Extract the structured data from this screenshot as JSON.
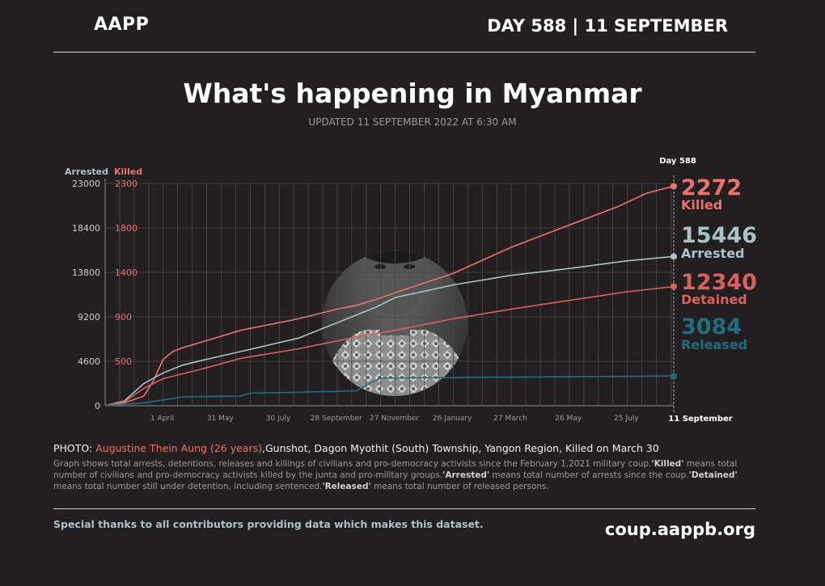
{
  "header": {
    "logo": "AAPP",
    "day_info": "DAY 588 | 11 SEPTEMBER"
  },
  "title": "What's happening in Myanmar",
  "updated": "UPDATED 11 SEPTEMBER 2022 AT 6:30 AM",
  "photo_caption": {
    "prefix": "PHOTO: ",
    "name": "Augustine Thein Aung (26 years)",
    "details": ",Gunshot, Dagon Myothit (South) Township, Yangon Region, Killed on March 30"
  },
  "description": {
    "p1": "Graph shows total arrests, detentions, releases and killings of civilians and pro-democracy activists since the February 1,2021 military coup.",
    "killed_term": "'Killed'",
    "p2": " means total number of civilians and pro-democracy activists killed by the junta and pro-military groups.",
    "arrested_term": "'Arrested'",
    "p3": " means total number of arrests since the coup.",
    "detained_term": "'Detained'",
    "p4": " means total number still under detention, including sentenced.",
    "released_term": "'Released'",
    "p5": " means total number of released persons."
  },
  "footer": {
    "thanks": "Special thanks to all contributors providing data which makes this dataset.",
    "site": "coup.aappb.org"
  },
  "chart_data": {
    "type": "line",
    "day_marker": "Day 588",
    "end_label": "11 September",
    "x_ticks": [
      "1 April",
      "31 May",
      "30 July",
      "28 September",
      "27 November",
      "26 January",
      "27 March",
      "26 May",
      "25 July"
    ],
    "x_tick_days": [
      59,
      119,
      179,
      239,
      299,
      359,
      419,
      479,
      539
    ],
    "x_end_day": 588,
    "left_axis": {
      "label": "Arrested",
      "ticks": [
        0,
        4600,
        9200,
        13800,
        18400,
        23000
      ],
      "range": [
        0,
        23000
      ],
      "color": "#a9c3c9"
    },
    "right_axis": {
      "label": "Killed",
      "ticks": [
        0,
        500,
        900,
        1400,
        1800,
        2300
      ],
      "range": [
        0,
        2300
      ],
      "color": "#e8756d"
    },
    "series": [
      {
        "name": "Killed",
        "axis": "right",
        "color": "#e8756d",
        "final": "2272",
        "x": [
          0,
          20,
          40,
          50,
          60,
          70,
          80,
          100,
          140,
          200,
          240,
          260,
          280,
          300,
          360,
          420,
          480,
          530,
          560,
          588
        ],
        "y": [
          0,
          30,
          100,
          260,
          480,
          560,
          600,
          660,
          780,
          900,
          1000,
          1040,
          1100,
          1170,
          1370,
          1640,
          1870,
          2060,
          2200,
          2272
        ]
      },
      {
        "name": "Arrested",
        "axis": "left",
        "color": "#a9c3c9",
        "final": "15446",
        "x": [
          0,
          20,
          40,
          60,
          80,
          100,
          140,
          200,
          240,
          280,
          300,
          360,
          420,
          480,
          540,
          588
        ],
        "y": [
          0,
          500,
          2300,
          3400,
          4200,
          4700,
          5600,
          7000,
          8600,
          10200,
          11200,
          12500,
          13500,
          14200,
          15000,
          15446
        ]
      },
      {
        "name": "Detained",
        "axis": "left",
        "color": "#d9615c",
        "final": "12340",
        "x": [
          0,
          20,
          40,
          60,
          80,
          100,
          140,
          200,
          240,
          270,
          300,
          360,
          420,
          480,
          540,
          588
        ],
        "y": [
          0,
          400,
          1800,
          2800,
          3300,
          3800,
          4900,
          5900,
          6700,
          7300,
          7800,
          9000,
          10000,
          10900,
          11800,
          12340
        ]
      },
      {
        "name": "Released",
        "axis": "left",
        "color": "#1f6e80",
        "final": "3084",
        "x": [
          0,
          40,
          60,
          80,
          100,
          140,
          150,
          200,
          260,
          275,
          285,
          300,
          360,
          420,
          480,
          540,
          588
        ],
        "y": [
          0,
          300,
          600,
          900,
          950,
          1000,
          1300,
          1400,
          1550,
          2400,
          2850,
          2880,
          2920,
          2960,
          3000,
          3040,
          3084
        ]
      }
    ]
  }
}
